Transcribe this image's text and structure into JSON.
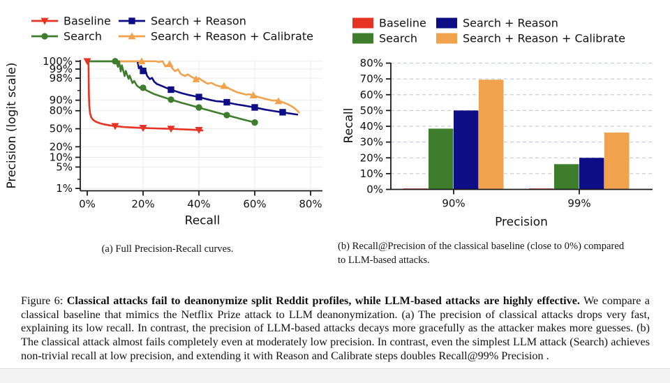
{
  "colors": {
    "baseline": "#e63323",
    "search": "#3d7d2c",
    "search_reason": "#0d0d85",
    "search_reason_calibrate": "#f0a24d",
    "grid_a": "#ebebeb",
    "grid_b": "#c9cdd8",
    "axis": "#1a1a1a",
    "footer": "#f3f3f4"
  },
  "panel_a": {
    "caption": "(a) Full Precision-Recall curves.",
    "legend": [
      {
        "label": "Baseline",
        "marker": "triangle-down"
      },
      {
        "label": "Search",
        "marker": "circle"
      },
      {
        "label": "Search + Reason",
        "marker": "square"
      },
      {
        "label": "Search + Reason + Calibrate",
        "marker": "triangle-up"
      }
    ]
  },
  "panel_b": {
    "caption_lines": [
      "(b) Recall@Precision of the classical baseline (close to 0%) compared",
      "to LLM-based attacks."
    ],
    "legend": [
      {
        "label": "Baseline"
      },
      {
        "label": "Search"
      },
      {
        "label": "Search + Reason"
      },
      {
        "label": "Search + Reason + Calibrate"
      }
    ]
  },
  "figure_caption": {
    "prefix": "Figure 6: ",
    "bold": "Classical attacks fail to deanonymize split Reddit profiles, while LLM-based attacks are highly effective.",
    "rest": " We compare a classical baseline that mimics the Netflix Prize attack to LLM deanonymization. (a) The precision of classical attacks drops very fast, explaining its low recall. In contrast, the precision of LLM-based attacks decays more gracefully as the attacker makes more guesses. (b) The classical attack almost fails completely even at moderately low precision. In contrast, even the simplest LLM attack (Search) achieves non-trivial recall at low precision, and extending it with Reason and Calibrate steps doubles Recall@99% Precision ."
  },
  "chart_data": [
    {
      "type": "line",
      "title": "",
      "xlabel": "Recall",
      "ylabel": "Precision (logit scale)",
      "y_scale": "logit",
      "xlim": [
        0,
        84
      ],
      "x_ticks": [
        {
          "label": "0%",
          "value": 0
        },
        {
          "label": "20%",
          "value": 20
        },
        {
          "label": "40%",
          "value": 40
        },
        {
          "label": "60%",
          "value": 60
        },
        {
          "label": "80%",
          "value": 80
        }
      ],
      "y_ticks": [
        {
          "label": "100%",
          "value": 100
        },
        {
          "label": "99%",
          "value": 99
        },
        {
          "label": "98%",
          "value": 98
        },
        {
          "label": "90%",
          "value": 90
        },
        {
          "label": "80%",
          "value": 80
        },
        {
          "label": "50%",
          "value": 50
        },
        {
          "label": "20%",
          "value": 20
        },
        {
          "label": "10%",
          "value": 10
        },
        {
          "label": "5%",
          "value": 5
        },
        {
          "label": "1%",
          "value": 1
        }
      ],
      "y_minor_ticks": [
        95,
        2
      ],
      "series": [
        {
          "name": "Baseline",
          "color": "#e63323",
          "marker": "triangle-down",
          "points": [
            [
              0,
              99.8
            ],
            [
              0.45,
              99.8
            ],
            [
              0.6,
              93
            ],
            [
              0.75,
              85
            ],
            [
              1,
              77
            ],
            [
              1.4,
              71
            ],
            [
              2,
              67
            ],
            [
              3,
              63.5
            ],
            [
              4.5,
              60.5
            ],
            [
              6,
              58.5
            ],
            [
              8,
              56.5
            ],
            [
              10,
              55
            ],
            [
              13,
              53.5
            ],
            [
              16,
              52.5
            ],
            [
              20,
              51.5
            ],
            [
              24,
              50.7
            ],
            [
              28,
              50.2
            ],
            [
              30,
              49.9
            ],
            [
              33,
              49.2
            ],
            [
              36,
              48.5
            ],
            [
              40,
              47.6
            ],
            [
              41.5,
              46.6
            ]
          ],
          "markers": [
            [
              0,
              99.8
            ],
            [
              10,
              55
            ],
            [
              20,
              51.5
            ],
            [
              30,
              49.9
            ],
            [
              40,
              47.6
            ]
          ]
        },
        {
          "name": "Search",
          "color": "#3d7d2c",
          "marker": "circle",
          "points": [
            [
              0,
              99.8
            ],
            [
              10,
              99.8
            ],
            [
              10.4,
              99.5
            ],
            [
              11,
              99.15
            ],
            [
              11.4,
              99.5
            ],
            [
              12,
              98.8
            ],
            [
              12.4,
              99.25
            ],
            [
              13.4,
              98.3
            ],
            [
              13.8,
              98.85
            ],
            [
              14.8,
              97.9
            ],
            [
              15.2,
              98.35
            ],
            [
              16.2,
              97.1
            ],
            [
              16.8,
              97.55
            ],
            [
              17.8,
              96.5
            ],
            [
              18.8,
              95.9
            ],
            [
              19.4,
              96.25
            ],
            [
              20,
              95.9
            ],
            [
              21,
              95.15
            ],
            [
              22.5,
              94.35
            ],
            [
              24,
              93.5
            ],
            [
              26,
              92.55
            ],
            [
              28,
              91.55
            ],
            [
              30,
              90.4
            ],
            [
              32,
              89.2
            ],
            [
              34,
              87.95
            ],
            [
              36,
              86.6
            ],
            [
              38,
              85.2
            ],
            [
              40,
              83.7
            ],
            [
              42,
              81.9
            ],
            [
              44,
              80.1
            ],
            [
              46,
              78.1
            ],
            [
              48,
              76.1
            ],
            [
              50,
              74.1
            ],
            [
              52,
              71.7
            ],
            [
              54,
              69.3
            ],
            [
              56,
              66.9
            ],
            [
              58,
              64.4
            ],
            [
              60,
              61.9
            ]
          ],
          "markers": [
            [
              10,
              99.8
            ],
            [
              20,
              95.9
            ],
            [
              30,
              90.4
            ],
            [
              40,
              83.7
            ],
            [
              50,
              74.1
            ],
            [
              60,
              61.9
            ]
          ]
        },
        {
          "name": "Search + Reason",
          "color": "#0d0d85",
          "marker": "square",
          "points": [
            [
              0,
              99.8
            ],
            [
              17,
              99.8
            ],
            [
              17.4,
              99.5
            ],
            [
              18,
              99.62
            ],
            [
              18.5,
              99.05
            ],
            [
              19.3,
              99.2
            ],
            [
              19.8,
              98.75
            ],
            [
              20.8,
              98.95
            ],
            [
              21.4,
              98.35
            ],
            [
              22.4,
              97.85
            ],
            [
              23.2,
              98.05
            ],
            [
              24,
              97.4
            ],
            [
              25,
              96.9
            ],
            [
              26.5,
              96.5
            ],
            [
              28,
              96.0
            ],
            [
              30,
              95.3
            ],
            [
              32,
              94.6
            ],
            [
              34,
              93.9
            ],
            [
              36,
              93.2
            ],
            [
              38,
              92.6
            ],
            [
              40,
              92.0
            ],
            [
              42,
              91.1
            ],
            [
              44,
              90.2
            ],
            [
              46,
              89.4
            ],
            [
              48,
              89.0
            ],
            [
              50,
              88.5
            ],
            [
              52,
              87.4
            ],
            [
              54,
              86.5
            ],
            [
              56,
              85.7
            ],
            [
              58,
              84.8
            ],
            [
              60,
              83.8
            ],
            [
              62,
              82.5
            ],
            [
              64,
              81.2
            ],
            [
              66,
              80.1
            ],
            [
              68,
              79.0
            ],
            [
              70,
              78.1
            ],
            [
              72,
              76.8
            ],
            [
              74,
              75.6
            ],
            [
              75.5,
              74.7
            ]
          ],
          "markers": [
            [
              20,
              98.85
            ],
            [
              30,
              95.3
            ],
            [
              40,
              92.0
            ],
            [
              50,
              88.5
            ],
            [
              60,
              83.8
            ],
            [
              70,
              78.1
            ]
          ]
        },
        {
          "name": "Search + Reason + Calibrate",
          "color": "#f0a24d",
          "marker": "triangle-up",
          "points": [
            [
              0,
              99.8
            ],
            [
              22,
              99.8
            ],
            [
              23,
              99.58
            ],
            [
              24.5,
              99.68
            ],
            [
              25.5,
              99.42
            ],
            [
              27,
              99.52
            ],
            [
              28,
              99.18
            ],
            [
              29.5,
              99.32
            ],
            [
              30.5,
              99.05
            ],
            [
              31.5,
              98.82
            ],
            [
              32.5,
              98.98
            ],
            [
              33.5,
              98.55
            ],
            [
              35,
              98.3
            ],
            [
              36,
              98.5
            ],
            [
              37.5,
              98.15
            ],
            [
              39,
              97.85
            ],
            [
              40,
              98.0
            ],
            [
              41.5,
              97.5
            ],
            [
              43,
              97.0
            ],
            [
              44.5,
              97.15
            ],
            [
              46,
              96.65
            ],
            [
              47.5,
              96.3
            ],
            [
              49,
              96.45
            ],
            [
              50,
              96.05
            ],
            [
              51.5,
              95.35
            ],
            [
              53,
              94.65
            ],
            [
              54,
              94.2
            ],
            [
              55.5,
              93.75
            ],
            [
              57,
              93.25
            ],
            [
              58,
              93.45
            ],
            [
              59.5,
              92.95
            ],
            [
              61,
              92.15
            ],
            [
              62.5,
              91.45
            ],
            [
              64,
              90.75
            ],
            [
              65,
              90.35
            ],
            [
              66.5,
              89.75
            ],
            [
              67.5,
              89.9
            ],
            [
              69,
              89.15
            ],
            [
              70,
              88.6
            ],
            [
              71,
              87.7
            ],
            [
              72,
              86.6
            ],
            [
              73,
              85.3
            ],
            [
              74,
              83.4
            ],
            [
              75,
              80.8
            ],
            [
              76,
              77.2
            ]
          ],
          "markers": [
            [
              19.5,
              99.8
            ],
            [
              29.5,
              99.32
            ],
            [
              39,
              97.85
            ],
            [
              49,
              96.45
            ],
            [
              59.5,
              92.95
            ],
            [
              68.5,
              89.4
            ]
          ]
        }
      ],
      "legend_position": "top"
    },
    {
      "type": "bar",
      "title": "",
      "xlabel": "Precision",
      "ylabel": "Recall",
      "categories": [
        "90%",
        "99%"
      ],
      "ylim": [
        0,
        80
      ],
      "y_ticks": [
        {
          "label": "0%",
          "value": 0
        },
        {
          "label": "10%",
          "value": 10
        },
        {
          "label": "20%",
          "value": 20
        },
        {
          "label": "30%",
          "value": 30
        },
        {
          "label": "40%",
          "value": 40
        },
        {
          "label": "50%",
          "value": 50
        },
        {
          "label": "60%",
          "value": 60
        },
        {
          "label": "70%",
          "value": 70
        },
        {
          "label": "80%",
          "value": 80
        }
      ],
      "grid": "dashed",
      "series": [
        {
          "name": "Baseline",
          "color": "#e63323",
          "values": [
            0.3,
            0.2
          ]
        },
        {
          "name": "Search",
          "color": "#3d7d2c",
          "values": [
            38.5,
            16
          ]
        },
        {
          "name": "Search + Reason",
          "color": "#0d0d85",
          "values": [
            50,
            20
          ]
        },
        {
          "name": "Search + Reason + Calibrate",
          "color": "#f0a24d",
          "values": [
            69.5,
            36
          ]
        }
      ],
      "legend_position": "top"
    }
  ]
}
